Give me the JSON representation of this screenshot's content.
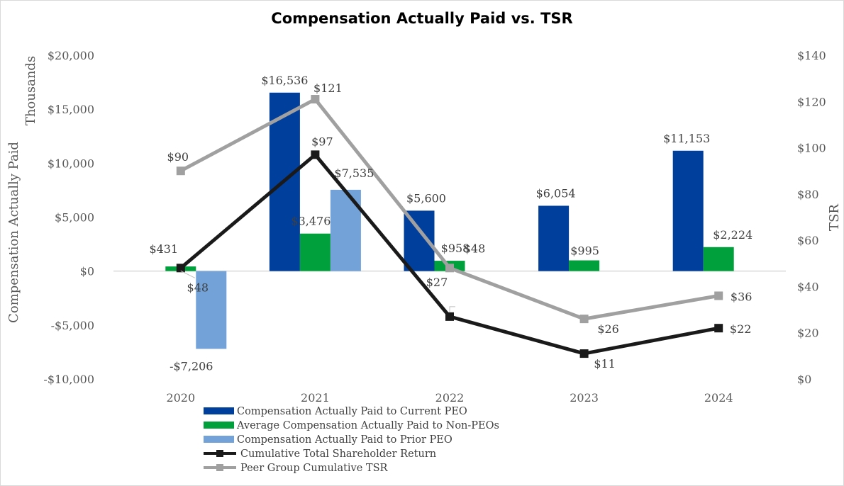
{
  "chart_data": {
    "title": "Compensation Actually Paid vs. TSR",
    "categories": [
      "2020",
      "2021",
      "2022",
      "2023",
      "2024"
    ],
    "y_left": {
      "label": "Compensation Actually Paid",
      "units_label": "Thousands",
      "range": [
        -10000,
        20000
      ],
      "ticks": [
        -10000,
        -5000,
        0,
        5000,
        10000,
        15000,
        20000
      ],
      "tick_labels": [
        "-$10,000",
        "-$5,000",
        "$0",
        "$5,000",
        "$10,000",
        "$15,000",
        "$20,000"
      ]
    },
    "y_right": {
      "label": "TSR",
      "range": [
        0,
        140
      ],
      "ticks": [
        0,
        20,
        40,
        60,
        80,
        100,
        120,
        140
      ],
      "tick_labels": [
        "$0",
        "$20",
        "$40",
        "$60",
        "$80",
        "$100",
        "$120",
        "$140"
      ]
    },
    "bar_series": [
      {
        "name": "Compensation Actually Paid to Current PEO",
        "color": "#003f9c",
        "values": [
          null,
          16536,
          5600,
          6054,
          11153
        ],
        "labels": [
          null,
          "$16,536",
          "$5,600",
          "$6,054",
          "$11,153"
        ]
      },
      {
        "name": "Average Compensation Actually Paid to Non-PEOs",
        "color": "#00a13c",
        "values": [
          431,
          3476,
          958,
          995,
          2224
        ],
        "labels": [
          "$431",
          "$3,476",
          "$958",
          "$995",
          "$2,224"
        ]
      },
      {
        "name": "Compensation Actually Paid to Prior PEO",
        "color": "#72a2d8",
        "values": [
          -7206,
          7535,
          null,
          null,
          null
        ],
        "labels": [
          "-$7,206",
          "$7,535",
          null,
          null,
          null
        ]
      }
    ],
    "line_series": [
      {
        "name": "Cumulative Total Shareholder Return",
        "color": "#1a1a1a",
        "values": [
          48,
          97,
          27,
          11,
          22
        ],
        "labels": [
          "$48",
          "$97",
          "$27",
          "$11",
          "$22"
        ]
      },
      {
        "name": "Peer Group Cumulative TSR",
        "color": "#a0a0a0",
        "values": [
          90,
          121,
          48,
          26,
          36
        ],
        "labels": [
          "$90",
          "$121",
          "$48",
          "$26",
          "$36"
        ]
      }
    ],
    "legend_position": "bottom-left"
  }
}
